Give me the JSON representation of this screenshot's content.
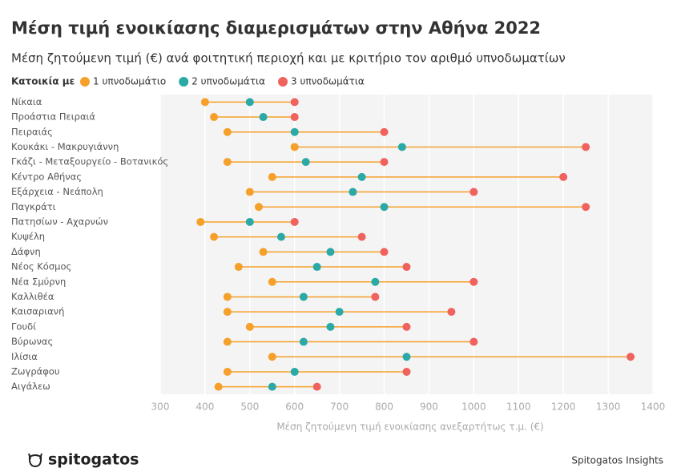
{
  "chart_data": {
    "type": "dumbbell",
    "title": "Μέση τιμή ενοικίασης διαμερισμάτων στην Αθήνα 2022",
    "subtitle": "Μέση ζητούμενη τιμή (€) ανά φοιτητική περιοχή και με κριτήριο τον αριθμό υπνοδωματίων",
    "legend_title": "Κατοικία με",
    "x_label": "Μέση ζητούμενη τιμή ενοικίασης ανεξαρτήτως τ.μ. (€)",
    "logo": "spitogatos",
    "source": "Spitogatos Insights",
    "line_color": "#f5a02a",
    "categories": [
      "Νίκαια",
      "Προάστια Πειραιά",
      "Πειραιάς",
      "Κουκάκι - Μακρυγιάννη",
      "Γκάζι - Μεταξουργείο - Βοτανικός",
      "Κέντρο Αθήνας",
      "Εξάρχεια - Νεάπολη",
      "Παγκράτι",
      "Πατησίων - Αχαρνών",
      "Κυψέλη",
      "Δάφνη",
      "Νέος Κόσμος",
      "Νέα Σμύρνη",
      "Καλλιθέα",
      "Καισαριανή",
      "Γουδί",
      "Βύρωνας",
      "Ιλίσια",
      "Ζωγράφου",
      "Αιγάλεω"
    ],
    "series": [
      {
        "name": "1 υπνοδωμάτιο",
        "color": "#f5a02a",
        "values": [
          400,
          420,
          450,
          600,
          450,
          550,
          500,
          520,
          390,
          420,
          530,
          475,
          550,
          450,
          450,
          500,
          450,
          550,
          450,
          430
        ]
      },
      {
        "name": "2 υπνοδωμάτια",
        "color": "#2aa9a7",
        "values": [
          500,
          530,
          600,
          840,
          625,
          750,
          730,
          800,
          500,
          570,
          680,
          650,
          780,
          620,
          700,
          680,
          620,
          850,
          600,
          550
        ]
      },
      {
        "name": "3 υπνοδωμάτια",
        "color": "#f0625e",
        "values": [
          600,
          600,
          800,
          1250,
          800,
          1200,
          1000,
          1250,
          600,
          750,
          800,
          850,
          1000,
          780,
          950,
          850,
          1000,
          1350,
          850,
          650
        ]
      }
    ],
    "xlim": [
      300,
      1400
    ],
    "xticks": [
      300,
      400,
      500,
      600,
      700,
      800,
      900,
      1000,
      1100,
      1200,
      1300,
      1400
    ],
    "grid": true
  }
}
